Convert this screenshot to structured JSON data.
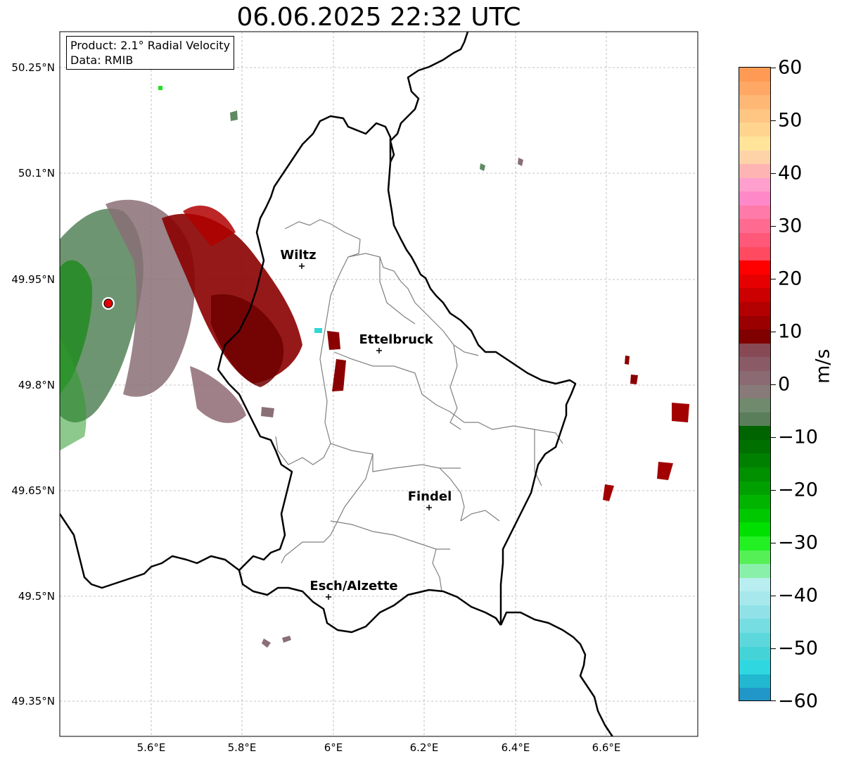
{
  "title": "06.06.2025 22:32 UTC",
  "info": {
    "product": "Product: 2.1° Radial Velocity",
    "data": "Data: RMIB"
  },
  "axes": {
    "lon_ticks": [
      "5.6°E",
      "5.8°E",
      "6°E",
      "6.2°E",
      "6.4°E",
      "6.6°E"
    ],
    "lat_ticks": [
      "50.25°N",
      "50.1°N",
      "49.95°N",
      "49.8°N",
      "49.65°N",
      "49.5°N",
      "49.35°N"
    ]
  },
  "cities": [
    {
      "name": "Wiltz"
    },
    {
      "name": "Ettelbruck"
    },
    {
      "name": "Findel"
    },
    {
      "name": "Esch/Alzette"
    }
  ],
  "colorbar": {
    "label": "m/s",
    "min": -60,
    "max": 60,
    "ticks": [
      "60",
      "50",
      "40",
      "30",
      "20",
      "10",
      "0",
      "−10",
      "−20",
      "−30",
      "−40",
      "−50",
      "−60"
    ]
  },
  "colors": {
    "radar_site": "#e60000",
    "border": "#000000",
    "districts": "#808080"
  }
}
